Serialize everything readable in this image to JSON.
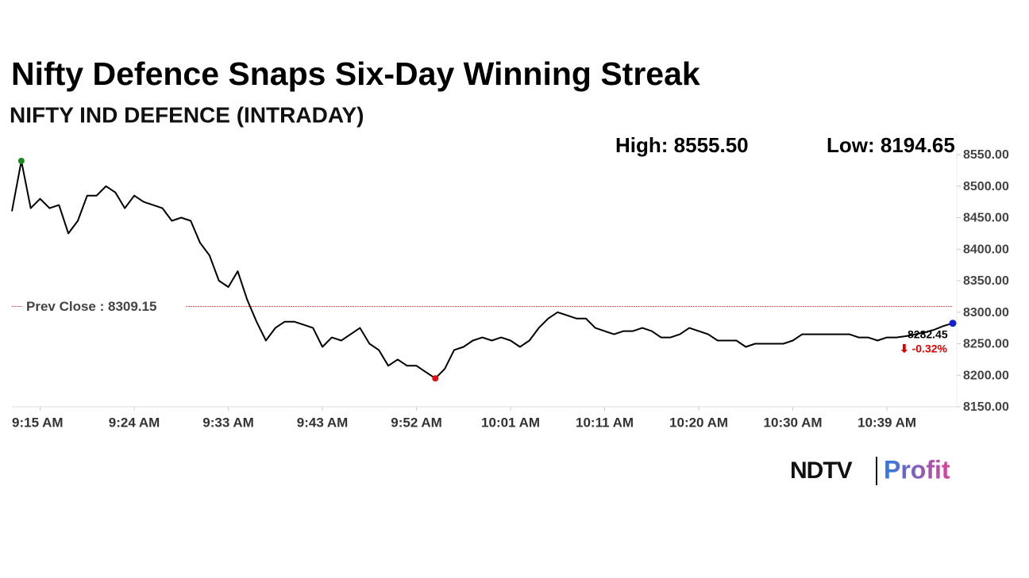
{
  "chart_data": {
    "type": "line",
    "title": "Nifty Defence Snaps Six-Day Winning Streak",
    "subtitle": "NIFTY IND DEFENCE (INTRADAY)",
    "high": {
      "value": 8555.5,
      "label": "High: 8555.50"
    },
    "low": {
      "value": 8194.65,
      "label": "Low: 8194.65"
    },
    "prev_close": {
      "value": 8309.15,
      "label": "Prev Close : 8309.15"
    },
    "last": {
      "value": 8282.45,
      "label": "8282.45"
    },
    "change": {
      "value": -0.32,
      "label": "⬇ -0.32%"
    },
    "categories": [
      null,
      null,
      null,
      "9:15 AM",
      null,
      null,
      null,
      null,
      null,
      null,
      null,
      null,
      null,
      "9:24 AM",
      null,
      null,
      null,
      null,
      null,
      null,
      null,
      null,
      null,
      "9:33 AM",
      null,
      null,
      null,
      null,
      null,
      null,
      null,
      null,
      null,
      "9:43 AM",
      null,
      null,
      null,
      null,
      null,
      null,
      null,
      null,
      null,
      "9:52 AM",
      null,
      null,
      null,
      null,
      null,
      null,
      null,
      null,
      null,
      "10:01 AM",
      null,
      null,
      null,
      null,
      null,
      null,
      null,
      null,
      null,
      "10:11 AM",
      null,
      null,
      null,
      null,
      null,
      null,
      null,
      null,
      null,
      "10:20 AM",
      null,
      null,
      null,
      null,
      null,
      null,
      null,
      null,
      null,
      "10:30 AM",
      null,
      null,
      null,
      null,
      null,
      null,
      null,
      null,
      null,
      "10:39 AM",
      null,
      null,
      null,
      null,
      null,
      null,
      null
    ],
    "series": [
      {
        "color": "#000000",
        "values": [
          8460,
          8540,
          8465,
          8480,
          8465,
          8470,
          8425,
          8445,
          8485,
          8485,
          8500,
          8490,
          8465,
          8485,
          8475,
          8470,
          8465,
          8445,
          8450,
          8445,
          8410,
          8390,
          8350,
          8340,
          8365,
          8320,
          8285,
          8255,
          8275,
          8285,
          8285,
          8280,
          8275,
          8245,
          8260,
          8255,
          8265,
          8275,
          8250,
          8240,
          8215,
          8225,
          8215,
          8215,
          8205,
          8195,
          8210,
          8240,
          8245,
          8255,
          8260,
          8255,
          8260,
          8255,
          8245,
          8255,
          8275,
          8290,
          8300,
          8295,
          8290,
          8290,
          8275,
          8270,
          8265,
          8270,
          8270,
          8275,
          8270,
          8260,
          8260,
          8265,
          8275,
          8270,
          8265,
          8255,
          8255,
          8255,
          8245,
          8250,
          8250,
          8250,
          8250,
          8255,
          8265,
          8265,
          8265,
          8265,
          8265,
          8265,
          8260,
          8260,
          8255,
          8260,
          8260,
          8262,
          8265,
          8268,
          8272,
          8278,
          8282.45
        ]
      }
    ],
    "ylim": [
      8150,
      8550
    ],
    "yticks": [
      {
        "value": 8150,
        "label": "8150.00"
      },
      {
        "value": 8200,
        "label": "8200.00"
      },
      {
        "value": 8250,
        "label": "8250.00"
      },
      {
        "value": 8300,
        "label": "8300.00"
      },
      {
        "value": 8350,
        "label": "8350.00"
      },
      {
        "value": 8400,
        "label": "8400.00"
      },
      {
        "value": 8450,
        "label": "8450.00"
      },
      {
        "value": 8500,
        "label": "8500.00"
      },
      {
        "value": 8550,
        "label": "8550.00"
      }
    ],
    "high_marker_color": "#1a8a1a",
    "low_marker_color": "#e01010",
    "last_marker_color": "#1020d0",
    "prev_close_color": "#e02020"
  },
  "logo": {
    "left": "NDTV",
    "right": "Profit"
  }
}
